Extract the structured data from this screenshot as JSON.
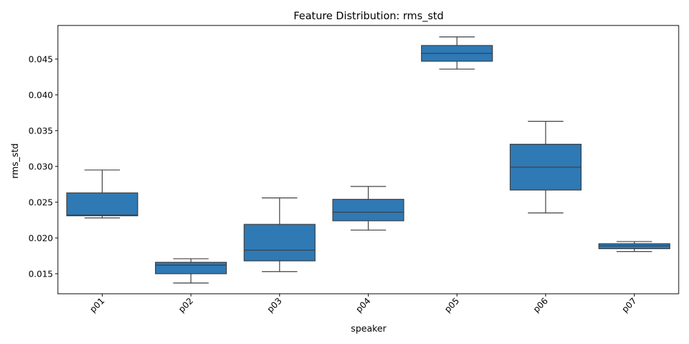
{
  "chart_data": {
    "type": "box",
    "title": "Feature Distribution: rms_std",
    "xlabel": "speaker",
    "ylabel": "rms_std",
    "ylim": [
      0.0122,
      0.0497
    ],
    "yticks": [
      0.015,
      0.02,
      0.025,
      0.03,
      0.035,
      0.04,
      0.045
    ],
    "ytick_labels": [
      "0.015",
      "0.020",
      "0.025",
      "0.030",
      "0.035",
      "0.040",
      "0.045"
    ],
    "grid": false,
    "box_color": "#2f79b4",
    "line_color": "#3d3d3d",
    "categories": [
      "p01",
      "p02",
      "p03",
      "p04",
      "p05",
      "p06",
      "p07"
    ],
    "boxes": [
      {
        "whisker_low": 0.0228,
        "q1": 0.0231,
        "median": 0.0232,
        "q3": 0.0263,
        "whisker_high": 0.0295
      },
      {
        "whisker_low": 0.0137,
        "q1": 0.015,
        "median": 0.0162,
        "q3": 0.0166,
        "whisker_high": 0.0171
      },
      {
        "whisker_low": 0.0153,
        "q1": 0.0168,
        "median": 0.0183,
        "q3": 0.0219,
        "whisker_high": 0.0256
      },
      {
        "whisker_low": 0.0211,
        "q1": 0.0224,
        "median": 0.0236,
        "q3": 0.0254,
        "whisker_high": 0.0272
      },
      {
        "whisker_low": 0.0436,
        "q1": 0.0447,
        "median": 0.0458,
        "q3": 0.0469,
        "whisker_high": 0.0481
      },
      {
        "whisker_low": 0.0235,
        "q1": 0.0267,
        "median": 0.0299,
        "q3": 0.0331,
        "whisker_high": 0.0363
      },
      {
        "whisker_low": 0.0181,
        "q1": 0.0185,
        "median": 0.0189,
        "q3": 0.0192,
        "whisker_high": 0.0195
      }
    ]
  }
}
